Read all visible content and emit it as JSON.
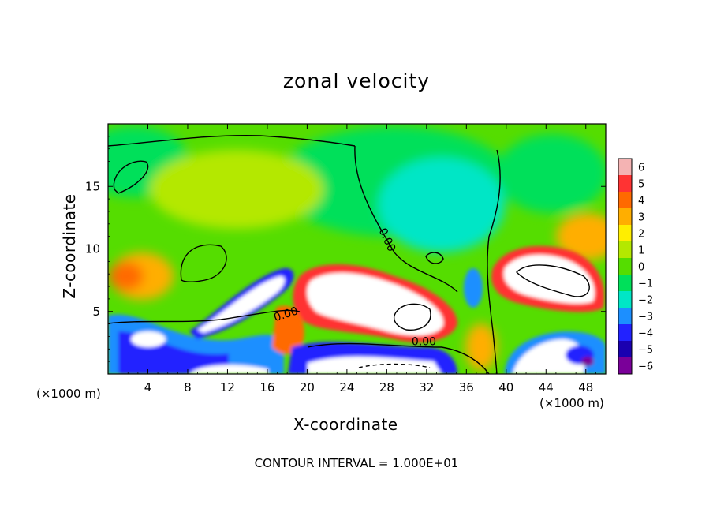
{
  "chart_data": {
    "type": "heatmap",
    "title": "zonal velocity",
    "xlabel": "X-coordinate",
    "ylabel": "Z-coordinate",
    "x_unit": "(×1000 m)",
    "xlim": [
      0,
      50
    ],
    "ylim": [
      0,
      20
    ],
    "x_ticks": [
      4,
      8,
      12,
      16,
      20,
      24,
      28,
      32,
      36,
      40,
      44,
      48
    ],
    "y_ticks": [
      5,
      10,
      15
    ],
    "colorbar": {
      "ticks": [
        6,
        5,
        4,
        3,
        2,
        1,
        0,
        -1,
        -2,
        -3,
        -4,
        -5,
        -6
      ],
      "colors": [
        "#f4b3b3",
        "#ff3333",
        "#ff6a00",
        "#ffae00",
        "#ffee00",
        "#b4e800",
        "#55dd00",
        "#00e05a",
        "#00e6c6",
        "#1c8fff",
        "#2222ff",
        "#1a00b0",
        "#7a0099"
      ]
    },
    "contour_labels": [
      "0.00",
      "0.00",
      "0.00"
    ],
    "footer": "CONTOUR INTERVAL = 1.000E+01"
  }
}
